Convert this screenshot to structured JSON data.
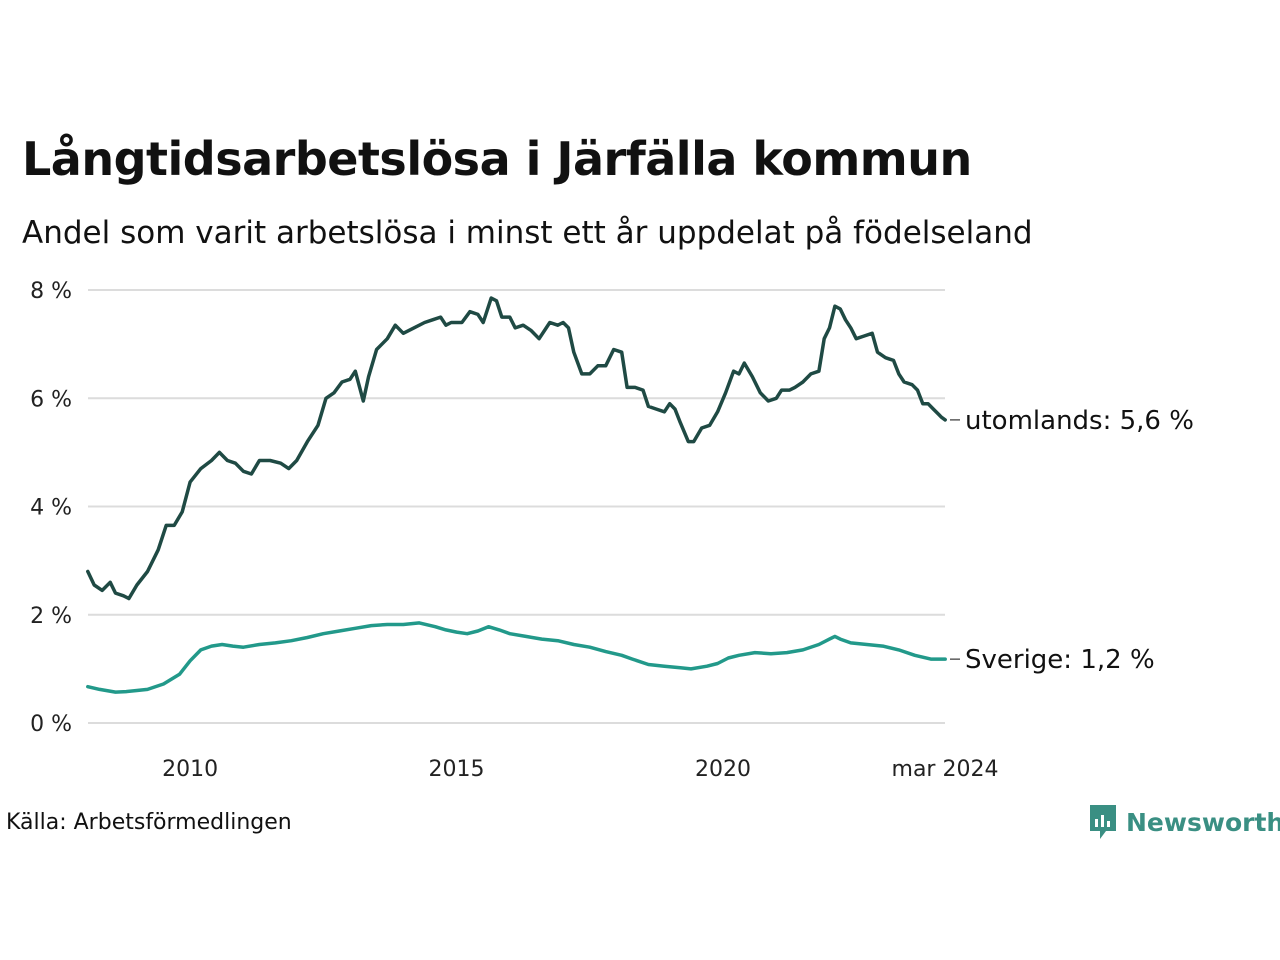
{
  "header": {
    "title": "Långtidsarbetslösa i Järfälla kommun",
    "subtitle": "Andel som varit arbetslösa i minst ett år uppdelat på födelseland"
  },
  "footer": {
    "source": "Källa: Arbetsförmedlingen",
    "brand": "Newsworthy",
    "brand_color": "#3a8f83"
  },
  "chart_data": {
    "type": "line",
    "title": "Långtidsarbetslösa i Järfälla kommun",
    "subtitle": "Andel som varit arbetslösa i minst ett år uppdelat på födelseland",
    "xlabel": "",
    "ylabel": "",
    "xlim": [
      2008.083,
      2024.167
    ],
    "ylim": [
      0,
      8
    ],
    "grid": true,
    "x_ticks": [
      {
        "value": 2010,
        "label": "2010"
      },
      {
        "value": 2015,
        "label": "2015"
      },
      {
        "value": 2020,
        "label": "2020"
      },
      {
        "value": 2024.167,
        "label": "mar 2024"
      }
    ],
    "y_ticks": [
      {
        "value": 0,
        "label": "0 %"
      },
      {
        "value": 2,
        "label": "2 %"
      },
      {
        "value": 4,
        "label": "4 %"
      },
      {
        "value": 6,
        "label": "6 %"
      },
      {
        "value": 8,
        "label": "8 %"
      }
    ],
    "series": [
      {
        "name": "utomlands",
        "label": "utomlands: 5,6 %",
        "color": "#1f4a44",
        "points": [
          [
            2008.08,
            2.8
          ],
          [
            2008.2,
            2.55
          ],
          [
            2008.35,
            2.45
          ],
          [
            2008.5,
            2.6
          ],
          [
            2008.6,
            2.4
          ],
          [
            2008.75,
            2.35
          ],
          [
            2008.85,
            2.3
          ],
          [
            2009.0,
            2.55
          ],
          [
            2009.2,
            2.8
          ],
          [
            2009.4,
            3.2
          ],
          [
            2009.55,
            3.65
          ],
          [
            2009.7,
            3.65
          ],
          [
            2009.85,
            3.9
          ],
          [
            2010.0,
            4.45
          ],
          [
            2010.2,
            4.7
          ],
          [
            2010.4,
            4.85
          ],
          [
            2010.55,
            5.0
          ],
          [
            2010.7,
            4.85
          ],
          [
            2010.85,
            4.8
          ],
          [
            2011.0,
            4.65
          ],
          [
            2011.15,
            4.6
          ],
          [
            2011.3,
            4.85
          ],
          [
            2011.5,
            4.85
          ],
          [
            2011.7,
            4.8
          ],
          [
            2011.85,
            4.7
          ],
          [
            2012.0,
            4.85
          ],
          [
            2012.2,
            5.2
          ],
          [
            2012.4,
            5.5
          ],
          [
            2012.55,
            6.0
          ],
          [
            2012.7,
            6.1
          ],
          [
            2012.85,
            6.3
          ],
          [
            2013.0,
            6.35
          ],
          [
            2013.1,
            6.5
          ],
          [
            2013.25,
            5.95
          ],
          [
            2013.35,
            6.4
          ],
          [
            2013.5,
            6.9
          ],
          [
            2013.7,
            7.1
          ],
          [
            2013.85,
            7.35
          ],
          [
            2014.0,
            7.2
          ],
          [
            2014.2,
            7.3
          ],
          [
            2014.4,
            7.4
          ],
          [
            2014.55,
            7.45
          ],
          [
            2014.7,
            7.5
          ],
          [
            2014.8,
            7.35
          ],
          [
            2014.9,
            7.4
          ],
          [
            2015.1,
            7.4
          ],
          [
            2015.25,
            7.6
          ],
          [
            2015.4,
            7.55
          ],
          [
            2015.5,
            7.4
          ],
          [
            2015.65,
            7.85
          ],
          [
            2015.75,
            7.8
          ],
          [
            2015.85,
            7.5
          ],
          [
            2016.0,
            7.5
          ],
          [
            2016.1,
            7.3
          ],
          [
            2016.25,
            7.35
          ],
          [
            2016.4,
            7.25
          ],
          [
            2016.55,
            7.1
          ],
          [
            2016.75,
            7.4
          ],
          [
            2016.9,
            7.35
          ],
          [
            2017.0,
            7.4
          ],
          [
            2017.1,
            7.3
          ],
          [
            2017.2,
            6.85
          ],
          [
            2017.35,
            6.45
          ],
          [
            2017.5,
            6.45
          ],
          [
            2017.65,
            6.6
          ],
          [
            2017.8,
            6.6
          ],
          [
            2017.95,
            6.9
          ],
          [
            2018.1,
            6.85
          ],
          [
            2018.2,
            6.2
          ],
          [
            2018.35,
            6.2
          ],
          [
            2018.5,
            6.15
          ],
          [
            2018.6,
            5.85
          ],
          [
            2018.75,
            5.8
          ],
          [
            2018.9,
            5.75
          ],
          [
            2019.0,
            5.9
          ],
          [
            2019.1,
            5.8
          ],
          [
            2019.2,
            5.55
          ],
          [
            2019.35,
            5.2
          ],
          [
            2019.45,
            5.2
          ],
          [
            2019.6,
            5.45
          ],
          [
            2019.75,
            5.5
          ],
          [
            2019.9,
            5.75
          ],
          [
            2020.05,
            6.1
          ],
          [
            2020.2,
            6.5
          ],
          [
            2020.3,
            6.45
          ],
          [
            2020.4,
            6.65
          ],
          [
            2020.55,
            6.4
          ],
          [
            2020.7,
            6.1
          ],
          [
            2020.85,
            5.95
          ],
          [
            2021.0,
            6.0
          ],
          [
            2021.1,
            6.15
          ],
          [
            2021.25,
            6.15
          ],
          [
            2021.35,
            6.2
          ],
          [
            2021.5,
            6.3
          ],
          [
            2021.65,
            6.45
          ],
          [
            2021.8,
            6.5
          ],
          [
            2021.9,
            7.1
          ],
          [
            2022.0,
            7.3
          ],
          [
            2022.1,
            7.7
          ],
          [
            2022.2,
            7.65
          ],
          [
            2022.3,
            7.45
          ],
          [
            2022.4,
            7.3
          ],
          [
            2022.5,
            7.1
          ],
          [
            2022.65,
            7.15
          ],
          [
            2022.8,
            7.2
          ],
          [
            2022.9,
            6.85
          ],
          [
            2023.05,
            6.75
          ],
          [
            2023.2,
            6.7
          ],
          [
            2023.3,
            6.45
          ],
          [
            2023.4,
            6.3
          ],
          [
            2023.55,
            6.25
          ],
          [
            2023.65,
            6.15
          ],
          [
            2023.75,
            5.9
          ],
          [
            2023.85,
            5.9
          ],
          [
            2023.95,
            5.8
          ],
          [
            2024.05,
            5.7
          ],
          [
            2024.1,
            5.65
          ],
          [
            2024.17,
            5.6
          ]
        ]
      },
      {
        "name": "Sverige",
        "label": "Sverige: 1,2 %",
        "color": "#22998a",
        "points": [
          [
            2008.08,
            0.67
          ],
          [
            2008.3,
            0.62
          ],
          [
            2008.6,
            0.57
          ],
          [
            2008.8,
            0.58
          ],
          [
            2009.0,
            0.6
          ],
          [
            2009.2,
            0.62
          ],
          [
            2009.5,
            0.72
          ],
          [
            2009.8,
            0.9
          ],
          [
            2010.0,
            1.15
          ],
          [
            2010.2,
            1.35
          ],
          [
            2010.4,
            1.42
          ],
          [
            2010.6,
            1.45
          ],
          [
            2010.8,
            1.42
          ],
          [
            2011.0,
            1.4
          ],
          [
            2011.3,
            1.45
          ],
          [
            2011.6,
            1.48
          ],
          [
            2011.9,
            1.52
          ],
          [
            2012.2,
            1.58
          ],
          [
            2012.5,
            1.65
          ],
          [
            2012.8,
            1.7
          ],
          [
            2013.1,
            1.75
          ],
          [
            2013.4,
            1.8
          ],
          [
            2013.7,
            1.82
          ],
          [
            2014.0,
            1.82
          ],
          [
            2014.3,
            1.85
          ],
          [
            2014.6,
            1.78
          ],
          [
            2014.8,
            1.72
          ],
          [
            2015.0,
            1.68
          ],
          [
            2015.2,
            1.65
          ],
          [
            2015.4,
            1.7
          ],
          [
            2015.6,
            1.78
          ],
          [
            2015.8,
            1.72
          ],
          [
            2016.0,
            1.65
          ],
          [
            2016.3,
            1.6
          ],
          [
            2016.6,
            1.55
          ],
          [
            2016.9,
            1.52
          ],
          [
            2017.2,
            1.45
          ],
          [
            2017.5,
            1.4
          ],
          [
            2017.8,
            1.32
          ],
          [
            2018.1,
            1.25
          ],
          [
            2018.3,
            1.18
          ],
          [
            2018.6,
            1.08
          ],
          [
            2018.9,
            1.05
          ],
          [
            2019.2,
            1.02
          ],
          [
            2019.4,
            1.0
          ],
          [
            2019.7,
            1.05
          ],
          [
            2019.9,
            1.1
          ],
          [
            2020.1,
            1.2
          ],
          [
            2020.3,
            1.25
          ],
          [
            2020.6,
            1.3
          ],
          [
            2020.9,
            1.28
          ],
          [
            2021.2,
            1.3
          ],
          [
            2021.5,
            1.35
          ],
          [
            2021.8,
            1.45
          ],
          [
            2022.0,
            1.55
          ],
          [
            2022.1,
            1.6
          ],
          [
            2022.2,
            1.55
          ],
          [
            2022.4,
            1.48
          ],
          [
            2022.7,
            1.45
          ],
          [
            2023.0,
            1.42
          ],
          [
            2023.3,
            1.35
          ],
          [
            2023.6,
            1.25
          ],
          [
            2023.9,
            1.18
          ],
          [
            2024.17,
            1.18
          ]
        ]
      }
    ]
  }
}
